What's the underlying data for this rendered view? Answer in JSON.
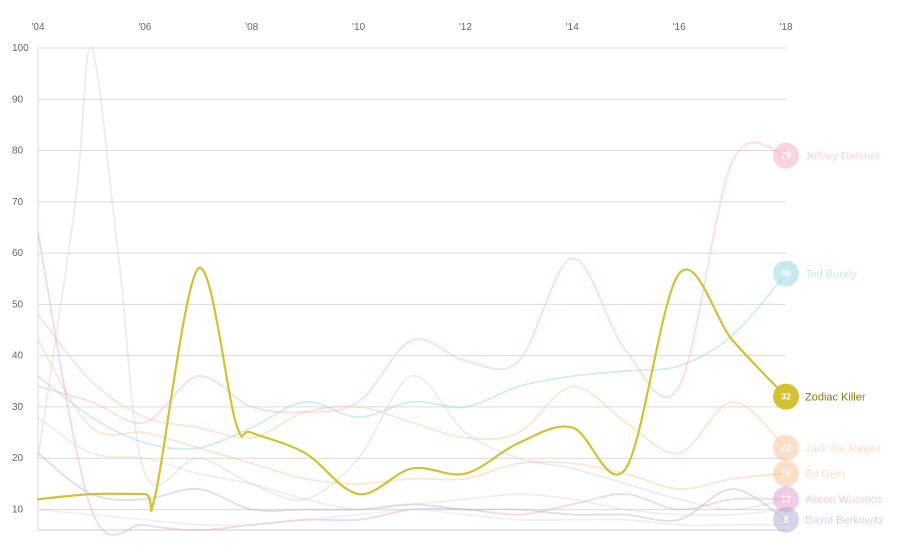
{
  "chart_data": {
    "type": "line",
    "x_ticks": [
      "'04",
      "'06",
      "'08",
      "'10",
      "'12",
      "'14",
      "'16",
      "'18"
    ],
    "y_ticks": [
      10,
      20,
      30,
      40,
      50,
      60,
      70,
      80,
      90,
      100
    ],
    "xlim": [
      2004,
      2018
    ],
    "ylim": [
      6,
      100
    ],
    "grid": "horizontal",
    "highlight_series": "Zodiac Killer",
    "series": [
      {
        "name": "Jeffrey Dahmer",
        "color": "#f6b4c0",
        "opacity": 0.45,
        "labeled": true,
        "end_value": 79,
        "x": [
          2004,
          2005,
          2006,
          2007,
          2008,
          2009,
          2010,
          2011,
          2012,
          2013,
          2014,
          2015,
          2016,
          2017,
          2018
        ],
        "y": [
          34,
          31,
          27,
          36,
          30,
          29,
          31,
          43,
          39,
          39,
          59,
          41,
          34,
          78,
          79
        ]
      },
      {
        "name": "Ted Bundy",
        "color": "#9ad8e2",
        "opacity": 0.45,
        "labeled": true,
        "end_value": 56,
        "x": [
          2004,
          2005,
          2006,
          2007,
          2008,
          2009,
          2010,
          2011,
          2012,
          2013,
          2014,
          2015,
          2016,
          2017,
          2018
        ],
        "y": [
          36,
          28,
          23,
          22,
          26,
          31,
          28,
          31,
          30,
          34,
          36,
          37,
          38,
          44,
          56
        ]
      },
      {
        "name": "Zodiac Killer",
        "color": "#d4c032",
        "opacity": 1,
        "labeled": true,
        "end_value": 32,
        "x": [
          2004,
          2005,
          2006,
          2006.2,
          2007,
          2007.7,
          2008,
          2009,
          2010,
          2011,
          2012,
          2013,
          2014,
          2015,
          2016,
          2017,
          2018
        ],
        "y": [
          12,
          13,
          13,
          13,
          57,
          27,
          25,
          21,
          13,
          18,
          17,
          23,
          26,
          18,
          56,
          43,
          32
        ]
      },
      {
        "name": "Jack the Ripper",
        "color": "#f9c5a0",
        "opacity": 0.45,
        "labeled": true,
        "end_value": 22,
        "x": [
          2004,
          2005,
          2006,
          2007,
          2008,
          2009,
          2010,
          2011,
          2012,
          2013,
          2014,
          2015,
          2016,
          2017,
          2018
        ],
        "y": [
          48,
          35,
          28,
          26,
          24,
          29,
          30,
          27,
          24,
          25,
          34,
          27,
          21,
          31,
          22
        ]
      },
      {
        "name": "Ed Gein",
        "color": "#f6c89a",
        "opacity": 0.45,
        "labeled": true,
        "end_value": 17,
        "x": [
          2004,
          2005,
          2006,
          2007,
          2008,
          2009,
          2010,
          2011,
          2012,
          2013,
          2014,
          2015,
          2016,
          2017,
          2018
        ],
        "y": [
          43,
          26,
          25,
          22,
          19,
          16,
          15,
          16,
          16,
          19,
          19,
          17,
          14,
          16,
          17
        ]
      },
      {
        "name": "Aileen Wuornos",
        "color": "#e7a6d0",
        "opacity": 0.45,
        "labeled": true,
        "end_value": 12,
        "x": [
          2004,
          2005,
          2006,
          2007,
          2008,
          2009,
          2010,
          2011,
          2012,
          2013,
          2014,
          2015,
          2016,
          2017,
          2018
        ],
        "y": [
          64,
          10,
          7,
          6,
          7,
          8,
          8,
          10,
          10,
          9,
          11,
          13,
          10,
          12,
          12
        ]
      },
      {
        "name": "David Berkowitz",
        "color": "#b8b2d8",
        "opacity": 0.45,
        "labeled": true,
        "end_value": 8,
        "x": [
          2004,
          2005,
          2006,
          2007,
          2008,
          2009,
          2010,
          2011,
          2012,
          2013,
          2014,
          2015,
          2016,
          2017,
          2018
        ],
        "y": [
          21,
          13,
          12,
          14,
          10,
          10,
          10,
          11,
          10,
          10,
          9,
          9,
          8,
          14,
          8
        ]
      },
      {
        "name": "",
        "color": "#c8c8c8",
        "opacity": 0.35,
        "labeled": false,
        "x": [
          2004,
          2004.7,
          2005,
          2005.5,
          2006,
          2007,
          2008,
          2009,
          2010,
          2011,
          2012,
          2013,
          2014,
          2015,
          2016,
          2017,
          2018
        ],
        "y": [
          20,
          70,
          100,
          60,
          17,
          20,
          15,
          12,
          20,
          36,
          25,
          20,
          18,
          15,
          12,
          10,
          12
        ]
      },
      {
        "name": "",
        "color": "#d8d0b0",
        "opacity": 0.35,
        "labeled": false,
        "x": [
          2004,
          2005,
          2006,
          2007,
          2008,
          2009,
          2010,
          2011,
          2012,
          2013,
          2014,
          2015,
          2016,
          2017,
          2018
        ],
        "y": [
          28,
          21,
          20,
          17,
          15,
          12,
          10,
          11,
          12,
          13,
          12,
          10,
          9,
          9,
          10
        ]
      },
      {
        "name": "",
        "color": "#c8d8e8",
        "opacity": 0.35,
        "labeled": false,
        "x": [
          2004,
          2005,
          2006,
          2007,
          2008,
          2009,
          2010,
          2011,
          2012,
          2013,
          2014,
          2015,
          2016,
          2017,
          2018
        ],
        "y": [
          10,
          9,
          8,
          7,
          7,
          8,
          9,
          10,
          9,
          8,
          8,
          8,
          7,
          7,
          7
        ]
      }
    ]
  }
}
